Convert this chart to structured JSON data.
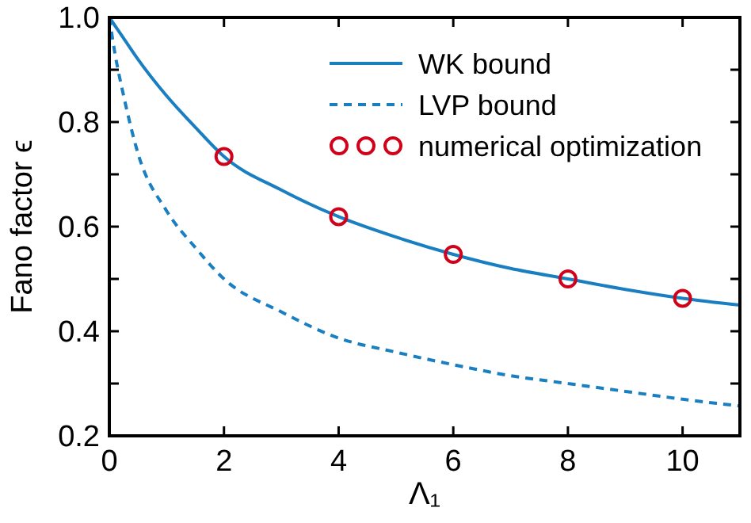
{
  "chart_data": {
    "type": "line",
    "xlabel": "Λ₁",
    "ylabel": "Fano factor ϵ",
    "xlim": [
      0,
      11
    ],
    "ylim": [
      0.2,
      1.0
    ],
    "xticks": [
      0,
      2,
      4,
      6,
      8,
      10
    ],
    "yticks": [
      0.2,
      {
        "value": 0.3,
        "label": null
      },
      0.4,
      {
        "value": 0.5,
        "label": null
      },
      0.6,
      {
        "value": 0.7,
        "label": null
      },
      0.8,
      {
        "value": 0.9,
        "label": null
      },
      {
        "value": 1.0,
        "label": "1.0"
      }
    ],
    "legend": "top right",
    "grid": false,
    "series": [
      {
        "name": "WK bound",
        "color": "#1a7fc1",
        "line_style": "solid",
        "x": [
          0,
          0.25,
          0.5,
          1,
          1.5,
          2,
          3,
          4,
          5,
          6,
          7,
          8,
          9,
          10,
          11
        ],
        "values": [
          1.0,
          0.96,
          0.92,
          0.85,
          0.79,
          0.734,
          0.67,
          0.619,
          0.58,
          0.547,
          0.52,
          0.5,
          0.48,
          0.463,
          0.45
        ]
      },
      {
        "name": "LVP bound",
        "color": "#1a7fc1",
        "line_style": "dashed",
        "x": [
          0,
          0.1,
          0.25,
          0.5,
          1,
          1.5,
          2,
          3,
          4,
          5,
          6,
          7,
          8,
          9,
          10,
          11
        ],
        "values": [
          1.0,
          0.93,
          0.85,
          0.74,
          0.63,
          0.56,
          0.5,
          0.437,
          0.387,
          0.36,
          0.336,
          0.315,
          0.3,
          0.285,
          0.27,
          0.257
        ]
      },
      {
        "name": "numerical optimization",
        "type": "scatter",
        "color": "#d0021b",
        "marker": "circle",
        "x": [
          2,
          4,
          6,
          8,
          10
        ],
        "values": [
          0.734,
          0.619,
          0.547,
          0.5,
          0.463
        ]
      }
    ]
  }
}
